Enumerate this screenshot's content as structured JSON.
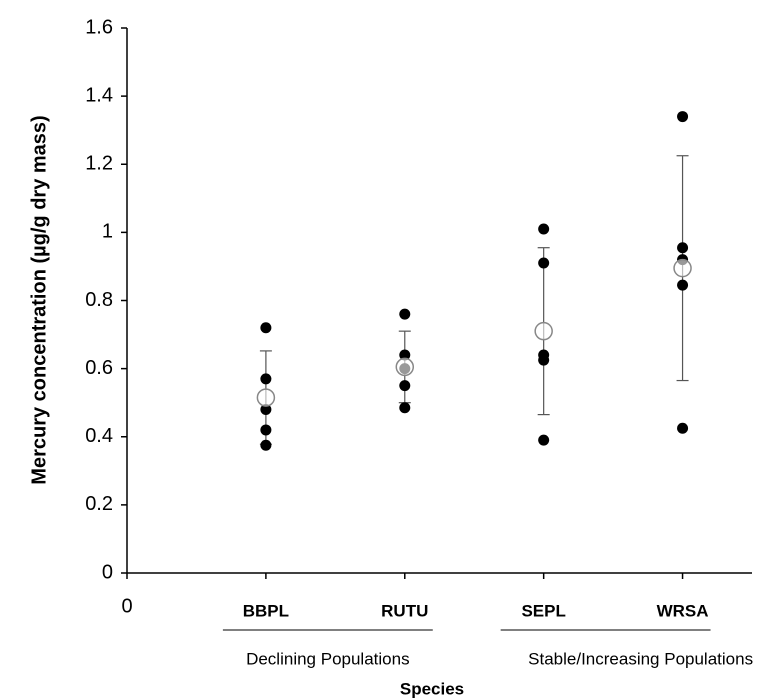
{
  "chart_data": {
    "type": "dotplot",
    "y_label": "Mercury concentration (µg/g dry mass)",
    "x_label": "Species",
    "categories": [
      "BBPL",
      "RUTU",
      "SEPL",
      "WRSA"
    ],
    "x": [
      1,
      2,
      3,
      4
    ],
    "groups": [
      {
        "label": "Declining Populations",
        "members": [
          0,
          1
        ]
      },
      {
        "label": "Stable/Increasing Populations",
        "members": [
          2,
          3
        ]
      }
    ],
    "points": [
      [
        0.72,
        0.57,
        0.48,
        0.42,
        0.375
      ],
      [
        0.76,
        0.64,
        0.6,
        0.55,
        0.485
      ],
      [
        1.01,
        0.91,
        0.64,
        0.625,
        0.39
      ],
      [
        1.34,
        0.955,
        0.92,
        0.845,
        0.425
      ]
    ],
    "means": [
      0.515,
      0.605,
      0.71,
      0.895
    ],
    "errors": [
      0.137,
      0.105,
      0.245,
      0.33
    ],
    "point_color": "#000000",
    "mean_color": "#888888",
    "xlim": [
      0,
      4.5
    ],
    "xticks": [
      0
    ],
    "ylim": [
      0,
      1.6
    ],
    "yticks": [
      0,
      0.2,
      0.4,
      0.6,
      0.8,
      1,
      1.2,
      1.4,
      1.6
    ]
  }
}
